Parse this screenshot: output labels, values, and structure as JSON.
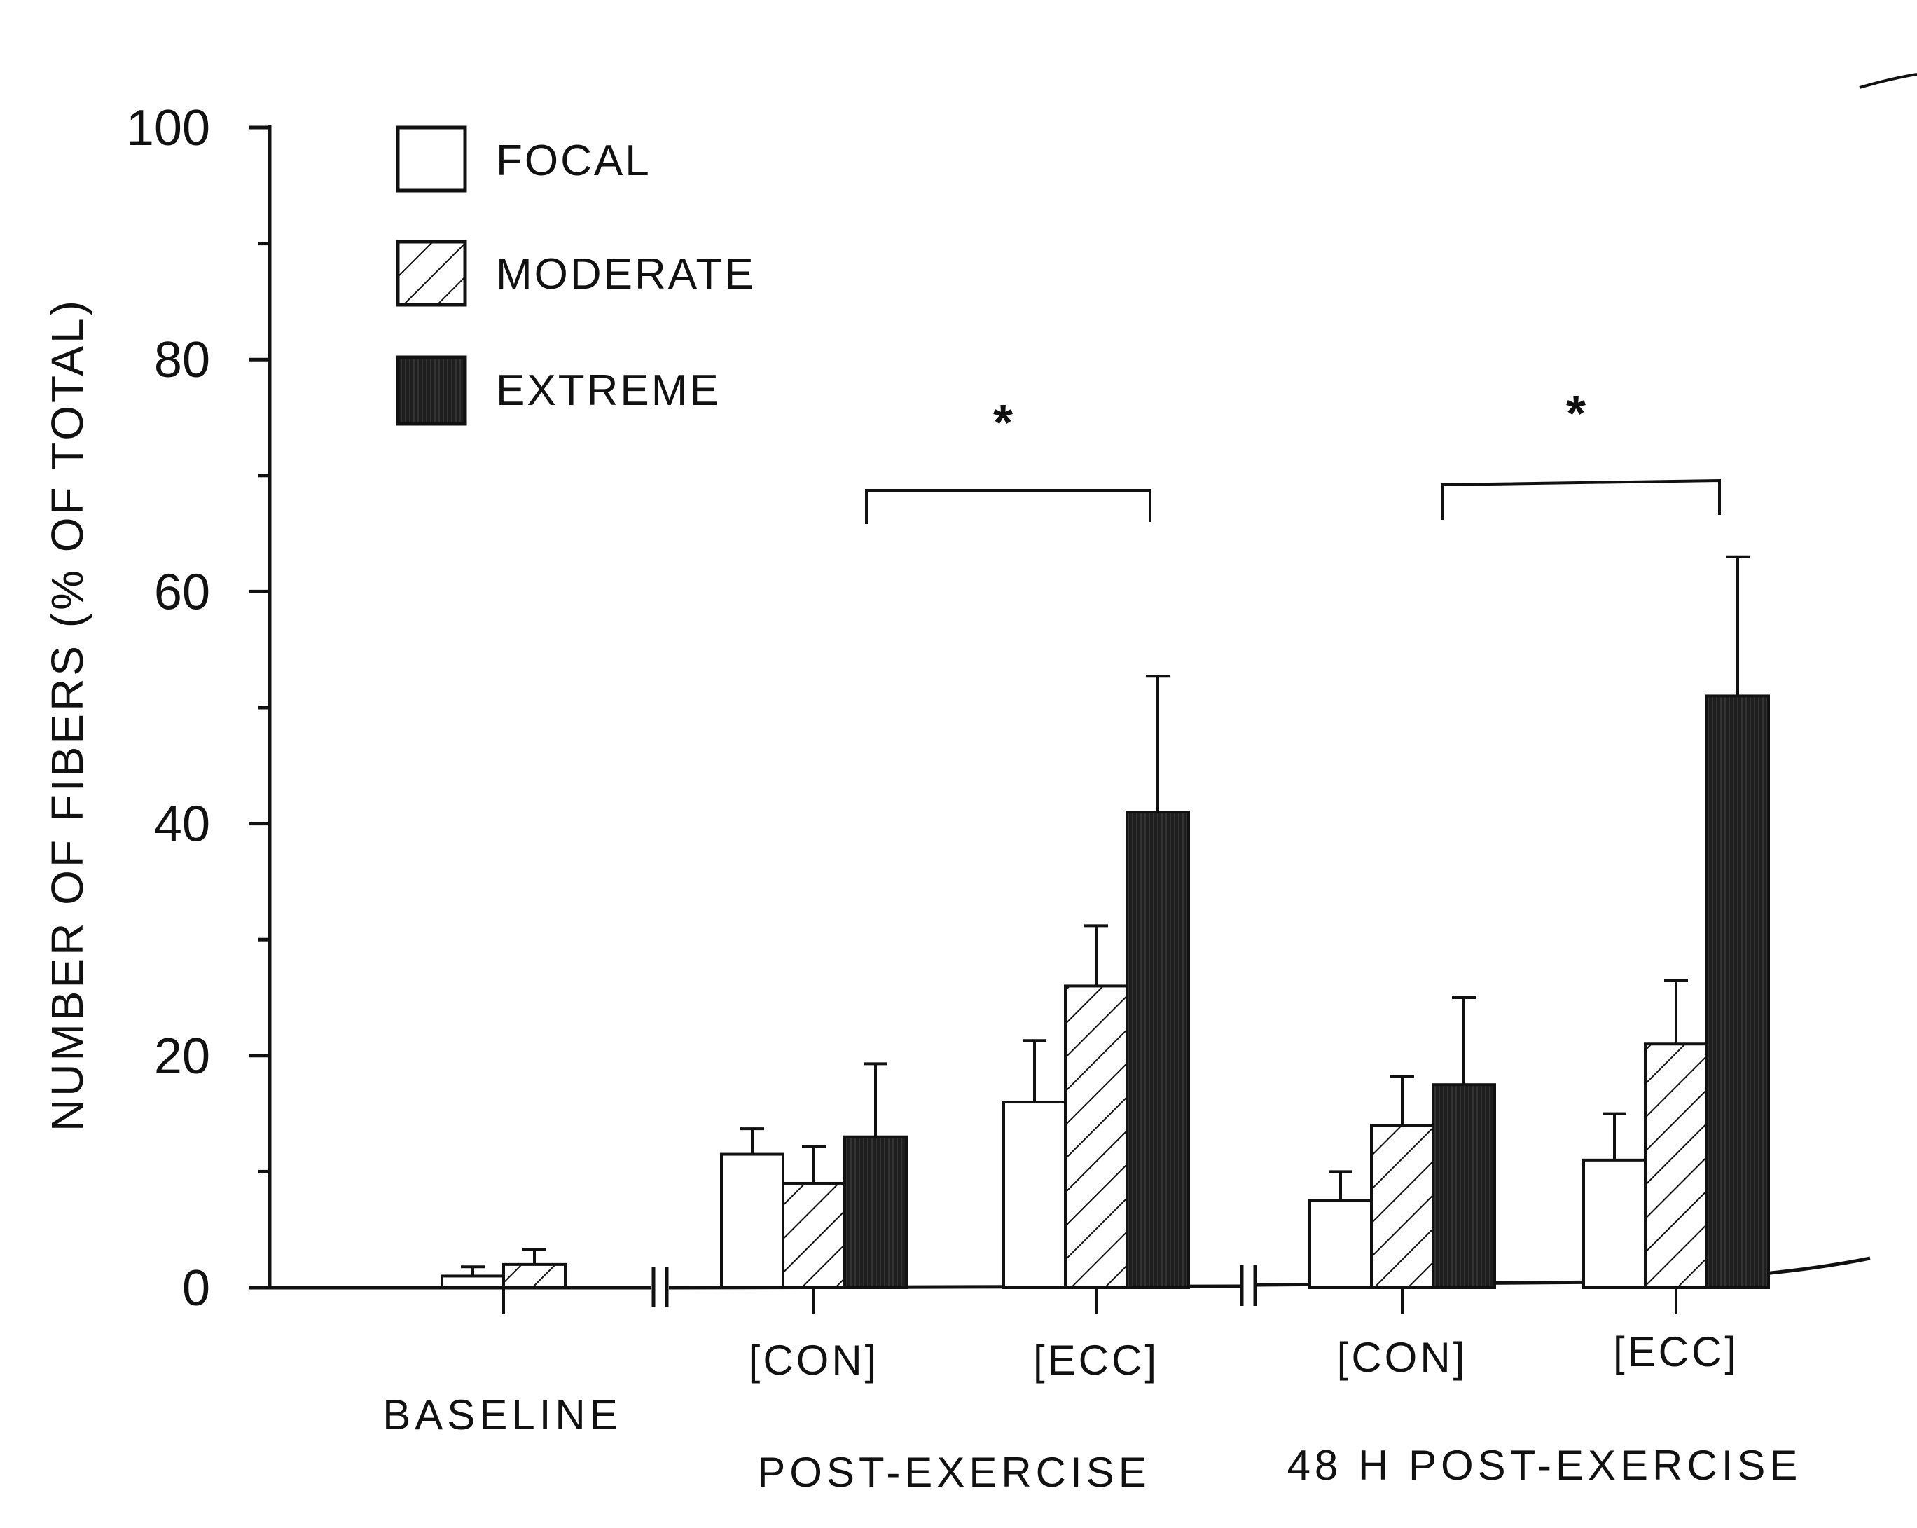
{
  "chart_data": {
    "type": "bar",
    "title": "",
    "xlabel": "",
    "ylabel": "NUMBER OF FIBERS (% OF TOTAL)",
    "ylim": [
      0,
      100
    ],
    "yticks": [
      0,
      20,
      40,
      60,
      80,
      100
    ],
    "yticks_labels": [
      "0",
      "20",
      "40",
      "60",
      "80",
      "100"
    ],
    "legend": {
      "position": "top-left",
      "entries": [
        "FOCAL",
        "MODERATE",
        "EXTREME"
      ]
    },
    "series": [
      {
        "name": "FOCAL",
        "pattern": "open",
        "values": [
          1,
          11.5,
          16,
          7.5,
          11
        ],
        "errors": [
          0.8,
          2.2,
          5.3,
          2.5,
          4
        ]
      },
      {
        "name": "MODERATE",
        "pattern": "hatched",
        "values": [
          2,
          9,
          26,
          14,
          21
        ],
        "errors": [
          1.3,
          3.2,
          5.2,
          4.2,
          5.5
        ]
      },
      {
        "name": "EXTREME",
        "pattern": "solid",
        "values": [
          null,
          13,
          41,
          17.5,
          51
        ],
        "errors": [
          null,
          6.3,
          11.7,
          7.5,
          12
        ]
      }
    ],
    "categories": [
      "BASELINE",
      "[CON]",
      "[ECC]",
      "[CON]",
      "[ECC]"
    ],
    "groups": [
      {
        "label": "BASELINE",
        "categories": [
          "BASELINE"
        ]
      },
      {
        "label": "POST-EXERCISE",
        "categories": [
          "[CON]",
          "[ECC]"
        ]
      },
      {
        "label": "48 H POST-EXERCISE",
        "categories": [
          "[CON]",
          "[ECC]"
        ]
      }
    ],
    "significance": [
      {
        "between": [
          "[CON]",
          "[ECC]"
        ],
        "group": "POST-EXERCISE",
        "label": "*"
      },
      {
        "between": [
          "[CON]",
          "[ECC]"
        ],
        "group": "48 H POST-EXERCISE",
        "label": "*"
      }
    ]
  }
}
